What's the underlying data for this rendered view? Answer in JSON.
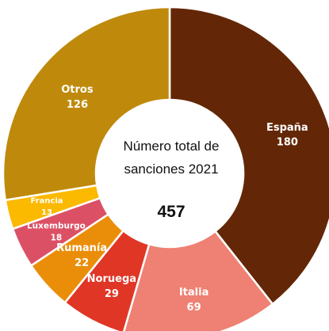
{
  "chart_data": {
    "type": "pie",
    "variant": "donut",
    "title": "Número total de sanciones 2021",
    "center_title_line1": "Número total de",
    "center_title_line2": "sanciones 2021",
    "total": 457,
    "total_label": "457",
    "start": "12 o'clock",
    "direction": "clockwise",
    "slices": [
      {
        "label": "España",
        "value": 180,
        "value_label": "180",
        "color": "#632707"
      },
      {
        "label": "Italia",
        "value": 69,
        "value_label": "69",
        "color": "#EE8173"
      },
      {
        "label": "Noruega",
        "value": 29,
        "value_label": "29",
        "color": "#E03626"
      },
      {
        "label": "Rumanía",
        "value": 22,
        "value_label": "22",
        "color": "#EA8E0A"
      },
      {
        "label": "Luxemburgo",
        "value": 18,
        "value_label": "18",
        "color": "#DC5065"
      },
      {
        "label": "Francia",
        "value": 13,
        "value_label": "13",
        "color": "#FBB900"
      },
      {
        "label": "Otros",
        "value": 126,
        "value_label": "126",
        "color": "#BF8A0B"
      }
    ]
  }
}
